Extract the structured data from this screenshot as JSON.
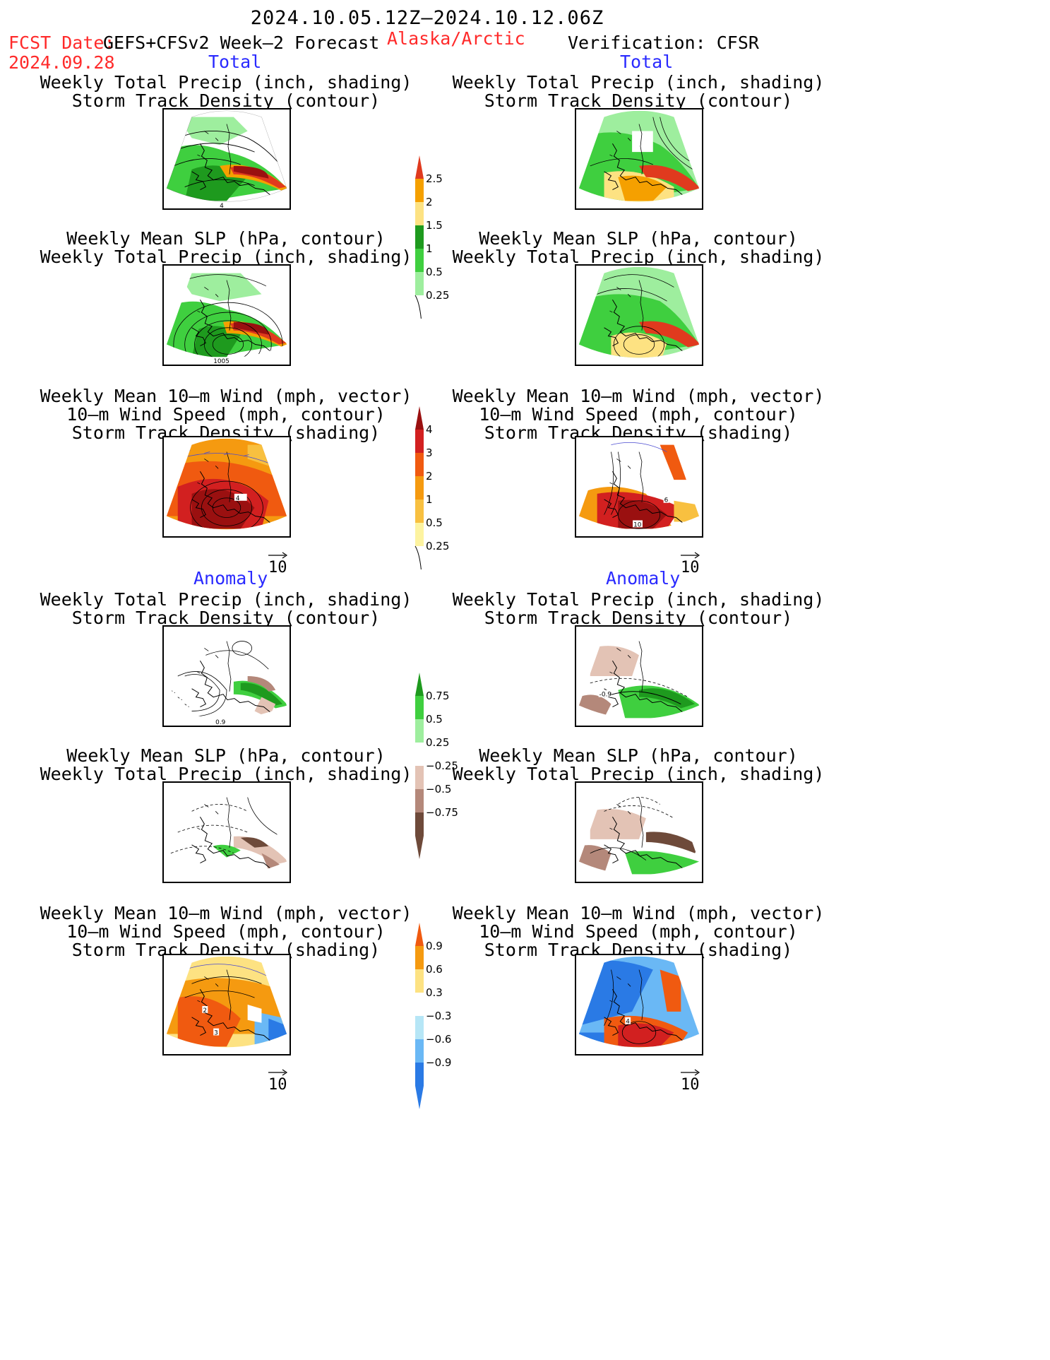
{
  "header": {
    "date_range": "2024.10.05.12Z–2024.10.12.06Z",
    "fcst_prefix": "FCST Date:",
    "fcst_model": "GEFS+CFSv2 Week–2 Forecast",
    "fcst_date": "2024.09.28",
    "region": "Alaska/Arctic",
    "verification": "Verification: CFSR"
  },
  "sections": {
    "total": "Total",
    "anomaly": "Anomaly"
  },
  "titles": {
    "precip_track": [
      "Weekly Total Precip (inch, shading)",
      "Storm Track Density (contour)"
    ],
    "slp_precip": [
      "Weekly Mean SLP (hPa, contour)",
      "Weekly Total Precip (inch, shading)"
    ],
    "wind_track": [
      "Weekly Mean 10–m Wind (mph, vector)",
      "10–m Wind Speed (mph, contour)",
      "Storm Track Density (shading)"
    ]
  },
  "panel_labels": {
    "l_total_1": "4",
    "l_total_2": "1005",
    "l_total_3": "4",
    "r_total_3a": "6",
    "r_total_3b": "10",
    "l_anom_1": "0.9",
    "r_anom_1": "-0.9",
    "l_anom_3a": "2",
    "l_anom_3b": "3",
    "r_anom_3": "4"
  },
  "vector_ref": "10",
  "colorbars": {
    "precip_total": {
      "labels": [
        "2.5",
        "2",
        "1.5",
        "1",
        "0.5",
        "0.25"
      ],
      "colors": [
        "#e03a1e",
        "#f5a000",
        "#fde282",
        "#1e9a1e",
        "#3fcf3f",
        "#9eee9e"
      ]
    },
    "track_total": {
      "labels": [
        "4",
        "3",
        "2",
        "1",
        "0.5",
        "0.25"
      ],
      "colors": [
        "#9a1010",
        "#d22020",
        "#f05a10",
        "#f59a10",
        "#f8c040",
        "#fdf3a0"
      ]
    },
    "precip_anom": {
      "labels": [
        "0.75",
        "0.5",
        "0.25",
        "−0.25",
        "−0.5",
        "−0.75"
      ],
      "colors": [
        "#1e9a1e",
        "#3fcf3f",
        "#9eee9e",
        "#ffffff",
        "#e3c3b5",
        "#b4887a",
        "#6e4a3a"
      ]
    },
    "track_anom": {
      "labels": [
        "0.9",
        "0.6",
        "0.3",
        "−0.3",
        "−0.6",
        "−0.9"
      ],
      "colors": [
        "#f05a10",
        "#f59a10",
        "#fde282",
        "#ffffff",
        "#b6e6f6",
        "#6ab8f5",
        "#2a7ae5"
      ]
    }
  },
  "colors": {
    "fill_green_light": "#9eee9e",
    "fill_green": "#3fcf3f",
    "fill_green_dark": "#1e9a1e",
    "fill_yellow": "#fde282",
    "fill_orange": "#f5a000",
    "fill_red": "#e03a1e",
    "fill_darkred": "#9a1010",
    "fill_brown_light": "#e3c3b5",
    "fill_brown": "#b4887a",
    "fill_brown_dark": "#6e4a3a",
    "fill_blue_light": "#b6e6f6",
    "fill_blue": "#6ab8f5",
    "fill_blue_dark": "#2a7ae5",
    "vector": "#4a4ad0"
  }
}
